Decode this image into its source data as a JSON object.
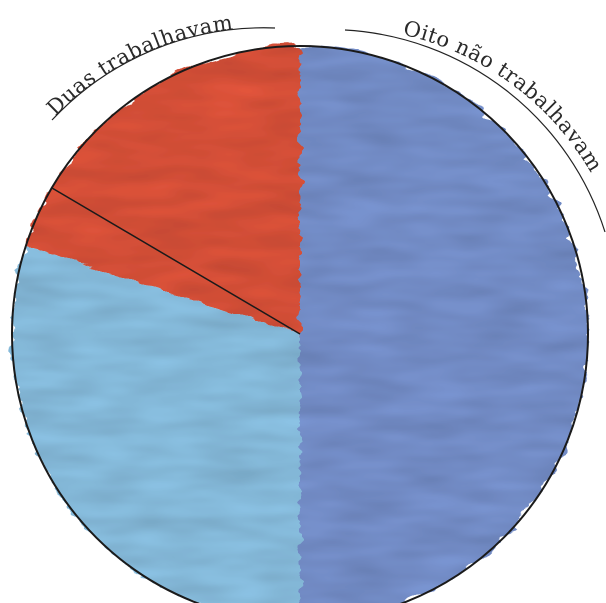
{
  "chart_data": {
    "type": "pie",
    "labels": {
      "worked": "Duas trabalhavam",
      "not_worked": "Oito não trabalhavam"
    },
    "slices": [
      {
        "key": "worked",
        "value": 2,
        "color": "#e5553a"
      },
      {
        "key": "not_worked_a",
        "value": 3,
        "color": "#8fc7ea"
      },
      {
        "key": "not_worked_b",
        "value": 5,
        "color": "#7b97d6"
      }
    ],
    "total": 10
  }
}
